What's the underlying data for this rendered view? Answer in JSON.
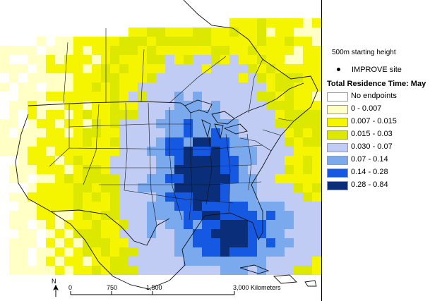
{
  "legend": {
    "starting_height": "500m starting height",
    "site_label": "IMPROVE site",
    "title": "Total Residence Time: May",
    "classes": [
      {
        "label": "No endpoints",
        "color": "#ffffff"
      },
      {
        "label": "0 - 0.007",
        "color": "#ffffc6"
      },
      {
        "label": "0.007 - 0.015",
        "color": "#f5f500"
      },
      {
        "label": "0.015 - 0.03",
        "color": "#dde800"
      },
      {
        "label": "0.030 - 0.07",
        "color": "#c0ccf4"
      },
      {
        "label": "0.07 - 0.14",
        "color": "#7aa9ee"
      },
      {
        "label": "0.14 - 0.28",
        "color": "#1559e3"
      },
      {
        "label": "0.28 - 0.84",
        "color": "#0a2e7a"
      }
    ]
  },
  "scalebar": {
    "north": "N",
    "ticks": [
      "0",
      "750",
      "1,500",
      "3,000 Kilometers"
    ]
  }
}
